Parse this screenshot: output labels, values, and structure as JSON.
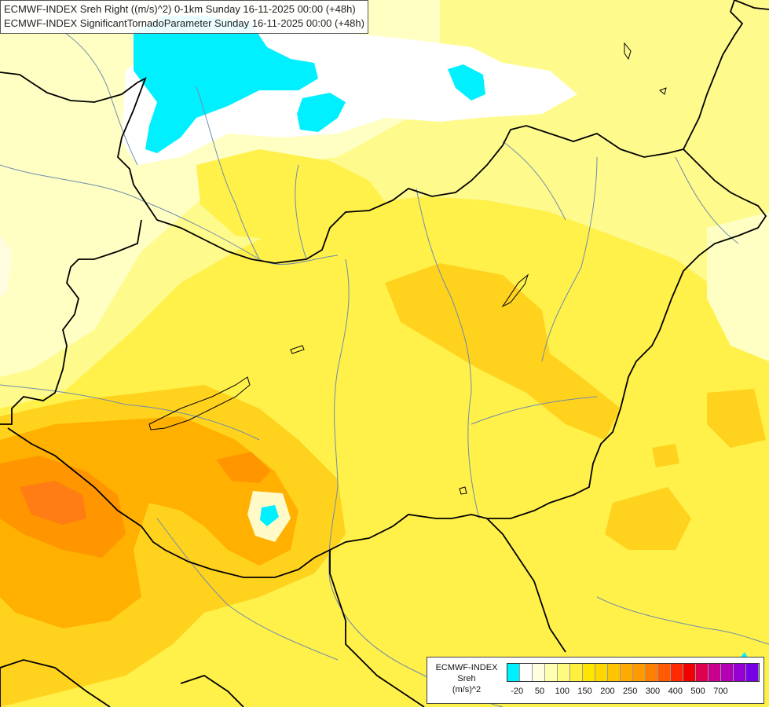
{
  "header": {
    "line1": "ECMWF-INDEX Sreh Right ((m/s)^2) 0-1km Sunday 16-11-2025 00:00 (+48h)",
    "line2": "ECMWF-INDEX SignificantTornadoParameter Sunday 16-11-2025 00:00 (+48h)"
  },
  "legend": {
    "title1": "ECMWF-INDEX",
    "title2": "Sreh",
    "title3": "(m/s)^2",
    "swatch_colors": [
      "#00f0ff",
      "#ffffff",
      "#ffffe0",
      "#ffffb0",
      "#fffa80",
      "#fff040",
      "#ffe600",
      "#ffd700",
      "#ffc400",
      "#ffaa00",
      "#ff9900",
      "#ff7d00",
      "#ff5a00",
      "#ff2800",
      "#f00000",
      "#e00050",
      "#c80090",
      "#b400b4",
      "#9600d2",
      "#7800e6",
      "#5a00c8",
      "#3c00a0",
      "#1e0078"
    ],
    "ticks": [
      {
        "label": "-20",
        "index": 0.5
      },
      {
        "label": "50",
        "index": 2.5
      },
      {
        "label": "100",
        "index": 4.5
      },
      {
        "label": "150",
        "index": 6.5
      },
      {
        "label": "200",
        "index": 8.5
      },
      {
        "label": "250",
        "index": 10.5
      },
      {
        "label": "300",
        "index": 12.5
      },
      {
        "label": "400",
        "index": 14.5
      },
      {
        "label": "500",
        "index": 16.5
      },
      {
        "label": "700",
        "index": 18.5
      }
    ]
  },
  "colors": {
    "pale_yellow": "#ffffc4",
    "light_yellow": "#fffa8c",
    "yellow": "#fff04a",
    "gold": "#ffd21e",
    "amber": "#ffb000",
    "orange": "#ff9600",
    "dark_orange": "#ff7d14",
    "cyan": "#00f0ff",
    "white": "#ffffff",
    "border": "#000000",
    "river": "#6e8caa"
  }
}
